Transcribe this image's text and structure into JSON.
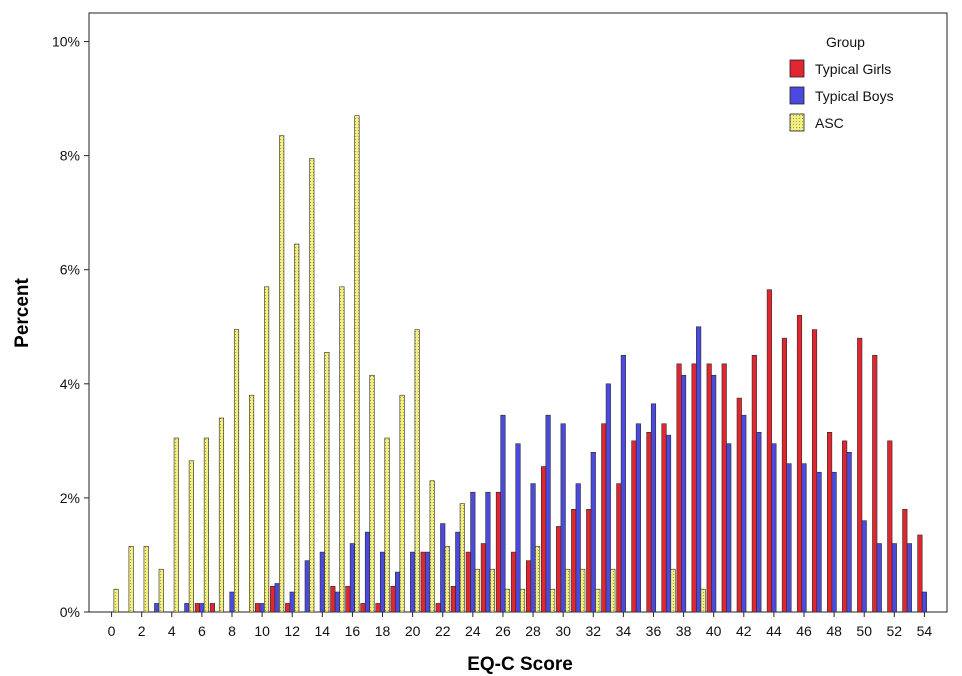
{
  "chart_data": {
    "type": "bar",
    "xlabel": "EQ-C Score",
    "ylabel": "Percent",
    "ylim": [
      0,
      10.5
    ],
    "yticks": [
      0,
      2,
      4,
      6,
      8,
      10
    ],
    "ytick_labels": [
      "0%",
      "2%",
      "4%",
      "6%",
      "8%",
      "10%"
    ],
    "xlim": [
      -1.5,
      55.5
    ],
    "xticks": [
      0,
      2,
      4,
      6,
      8,
      10,
      12,
      14,
      16,
      18,
      20,
      22,
      24,
      26,
      28,
      30,
      32,
      34,
      36,
      38,
      40,
      42,
      44,
      46,
      48,
      50,
      52,
      54
    ],
    "grid": false,
    "legend": {
      "title": "Group",
      "placement": "top-right"
    },
    "x": [
      0,
      1,
      2,
      3,
      4,
      5,
      6,
      7,
      8,
      9,
      10,
      11,
      12,
      13,
      14,
      15,
      16,
      17,
      18,
      19,
      20,
      21,
      22,
      23,
      24,
      25,
      26,
      27,
      28,
      29,
      30,
      31,
      32,
      33,
      34,
      35,
      36,
      37,
      38,
      39,
      40,
      41,
      42,
      43,
      44,
      45,
      46,
      47,
      48,
      49,
      50,
      51,
      52,
      53,
      54
    ],
    "series": [
      {
        "name": "Typical Girls",
        "color": "#e0262e",
        "pattern": "solid",
        "values": [
          0,
          0,
          0,
          0,
          0,
          0,
          0.15,
          0.15,
          0,
          0,
          0.15,
          0.45,
          0.15,
          0,
          0,
          0.45,
          0.45,
          0.15,
          0.15,
          0.45,
          0,
          1.05,
          0.15,
          0.45,
          1.05,
          1.2,
          2.1,
          1.05,
          0.9,
          2.55,
          1.5,
          1.8,
          1.8,
          3.3,
          2.25,
          3.0,
          3.15,
          3.3,
          4.35,
          4.35,
          4.35,
          4.35,
          3.75,
          4.5,
          5.65,
          4.8,
          5.2,
          4.95,
          3.15,
          3.0,
          4.8,
          4.5,
          3.0,
          1.8,
          1.35
        ]
      },
      {
        "name": "Typical Boys",
        "color": "#4a4adf",
        "pattern": "solid",
        "values": [
          0,
          0,
          0,
          0.15,
          0,
          0.15,
          0.15,
          0,
          0.35,
          0,
          0.15,
          0.5,
          0.35,
          0.9,
          1.05,
          0.35,
          1.2,
          1.4,
          1.05,
          0.7,
          1.05,
          1.05,
          1.55,
          1.4,
          2.1,
          2.1,
          3.45,
          2.95,
          2.25,
          3.45,
          3.3,
          2.25,
          2.8,
          4.0,
          4.5,
          3.3,
          3.65,
          3.1,
          4.15,
          5.0,
          4.15,
          2.95,
          3.45,
          3.15,
          2.95,
          2.6,
          2.6,
          2.45,
          2.45,
          2.8,
          1.6,
          1.2,
          1.2,
          1.2,
          0.35
        ]
      },
      {
        "name": "ASC",
        "color": "#f2ef80",
        "pattern": "dotted",
        "values": [
          0.4,
          1.15,
          1.15,
          0.75,
          3.05,
          2.65,
          3.05,
          3.4,
          4.95,
          3.8,
          5.7,
          8.35,
          6.45,
          7.95,
          4.55,
          5.7,
          8.7,
          4.15,
          3.05,
          3.8,
          4.95,
          2.3,
          1.15,
          1.9,
          0.75,
          0.75,
          0.4,
          0.4,
          1.15,
          0.4,
          0.75,
          0.75,
          0.4,
          0.75,
          0,
          0,
          0,
          0.75,
          0,
          0.4,
          0,
          0,
          0,
          0,
          0,
          0,
          0,
          0,
          0,
          0,
          0,
          0,
          0,
          0,
          0
        ]
      }
    ]
  }
}
